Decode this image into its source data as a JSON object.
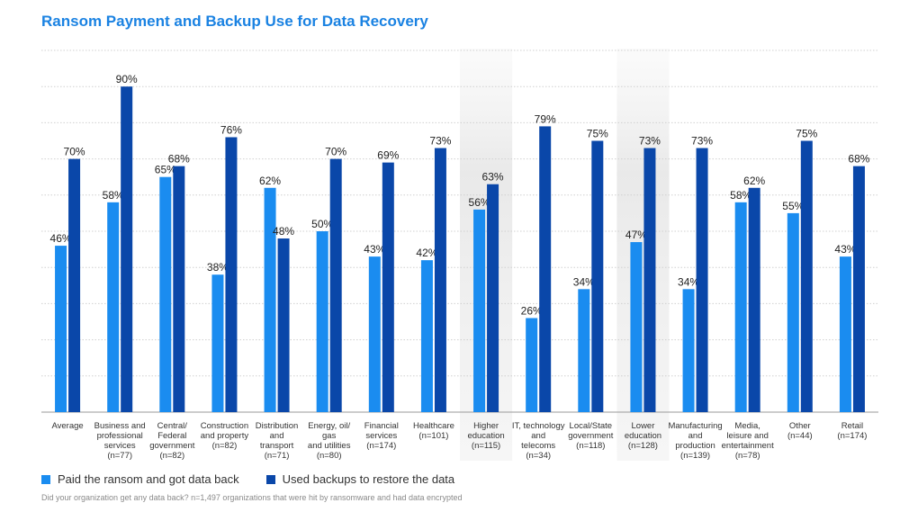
{
  "chart_data": {
    "type": "bar",
    "title": "Ransom Payment and Backup Use for Data Recovery",
    "ylim": [
      0,
      100
    ],
    "grid": true,
    "legend_position": "bottom-left",
    "categories": [
      [
        "Average"
      ],
      [
        "Business and",
        "professional",
        "services",
        "(n=77)"
      ],
      [
        "Central/",
        "Federal",
        "government",
        "(n=82)"
      ],
      [
        "Construction",
        "and property",
        "(n=82)"
      ],
      [
        "Distribution",
        "and",
        "transport",
        "(n=71)"
      ],
      [
        "Energy, oil/",
        "gas",
        "and utilities",
        "(n=80)"
      ],
      [
        "Financial",
        "services",
        "(n=174)"
      ],
      [
        "Healthcare",
        "(n=101)"
      ],
      [
        "Higher",
        "education",
        "(n=115)"
      ],
      [
        "IT, technology",
        "and",
        "telecoms",
        "(n=34)"
      ],
      [
        "Local/State",
        "government",
        "(n=118)"
      ],
      [
        "Lower",
        "education",
        "(n=128)"
      ],
      [
        "Manufacturing",
        "and",
        "production",
        "(n=139)"
      ],
      [
        "Media,",
        "leisure and",
        "entertainment",
        "(n=78)"
      ],
      [
        "Other",
        "(n=44)"
      ],
      [
        "Retail",
        "(n=174)"
      ]
    ],
    "highlighted_categories": [
      8,
      11
    ],
    "series": [
      {
        "name": "Paid the ransom and got data back",
        "color": "#1a8cf0",
        "values": [
          46,
          58,
          65,
          38,
          62,
          50,
          43,
          42,
          56,
          26,
          34,
          47,
          34,
          58,
          55,
          43
        ]
      },
      {
        "name": "Used backups to restore the data",
        "color": "#0a47a9",
        "values": [
          70,
          90,
          68,
          76,
          48,
          70,
          69,
          73,
          63,
          79,
          75,
          73,
          73,
          62,
          75,
          68
        ]
      }
    ],
    "value_suffix": "%",
    "footnote": "Did your organization get any data back? n=1,497 organizations that were hit by ransomware and had data encrypted"
  }
}
